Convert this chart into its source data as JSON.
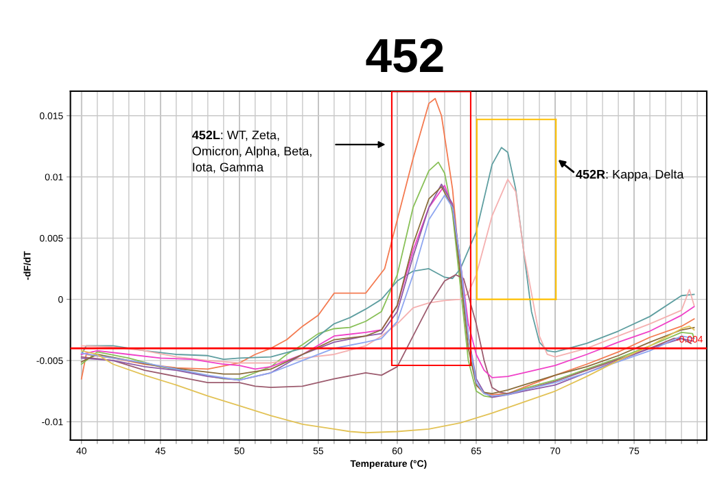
{
  "chart_data": {
    "type": "line",
    "title": "452",
    "xlabel": "Temperature (°C)",
    "ylabel": "-dF/dT",
    "xlim": [
      39.3,
      79.6
    ],
    "ylim": [
      -0.0115,
      0.017
    ],
    "xticks": [
      40,
      {
        "value": 41,
        "label": null
      },
      {
        "value": 42,
        "label": null
      },
      {
        "value": 43,
        "label": null
      },
      {
        "value": 44,
        "label": null
      },
      45,
      {
        "value": 46,
        "label": null
      },
      {
        "value": 47,
        "label": null
      },
      {
        "value": 48,
        "label": null
      },
      {
        "value": 49,
        "label": null
      },
      50,
      {
        "value": 51,
        "label": null
      },
      {
        "value": 52,
        "label": null
      },
      {
        "value": 53,
        "label": null
      },
      {
        "value": 54,
        "label": null
      },
      55,
      {
        "value": 56,
        "label": null
      },
      {
        "value": 57,
        "label": null
      },
      {
        "value": 58,
        "label": null
      },
      {
        "value": 59,
        "label": null
      },
      60,
      {
        "value": 61,
        "label": null
      },
      {
        "value": 62,
        "label": null
      },
      {
        "value": 63,
        "label": null
      },
      {
        "value": 64,
        "label": null
      },
      65,
      {
        "value": 66,
        "label": null
      },
      {
        "value": 67,
        "label": null
      },
      {
        "value": 68,
        "label": null
      },
      {
        "value": 69,
        "label": null
      },
      70,
      {
        "value": 71,
        "label": null
      },
      {
        "value": 72,
        "label": null
      },
      {
        "value": 73,
        "label": null
      },
      {
        "value": 74,
        "label": null
      },
      75,
      {
        "value": 76,
        "label": null
      },
      {
        "value": 77,
        "label": null
      },
      {
        "value": 78,
        "label": null
      },
      {
        "value": 79,
        "label": null
      }
    ],
    "yticks": [
      {
        "value": -0.01,
        "label": "-0.01"
      },
      {
        "value": -0.005,
        "label": "-0.005"
      },
      0,
      0.005,
      0.01,
      0.015
    ],
    "grid": true,
    "marker": "none",
    "line_style": "solid",
    "ref_lines": [
      {
        "axis": "y",
        "value": -0.004,
        "label": "-0.004",
        "color": "#ff0000"
      }
    ],
    "annotations": [
      "452L: WT, Zeta,\nOmicron, Alpha, Beta,\nIota, Gamma",
      "452R: Kappa, Delta"
    ],
    "series": [
      {
        "color": "#f47a50",
        "x": [
          40,
          40.3,
          42,
          44,
          46,
          48,
          50,
          51,
          52,
          53,
          54,
          55,
          56,
          57,
          58,
          59.2,
          60,
          61,
          62,
          62.4,
          62.8,
          63.5,
          64,
          64.5,
          65,
          65.5,
          66,
          67,
          68,
          70,
          72,
          74,
          76,
          78,
          78.8
        ],
        "values": [
          -0.0065,
          -0.0045,
          -0.0048,
          -0.0053,
          -0.0056,
          -0.0057,
          -0.0052,
          -0.0045,
          -0.004,
          -0.0033,
          -0.0022,
          -0.0013,
          0.0005,
          0.0005,
          0.0005,
          0.0025,
          0.0065,
          0.0115,
          0.016,
          0.0164,
          0.015,
          0.009,
          0.002,
          -0.003,
          -0.007,
          -0.0077,
          -0.0078,
          -0.0077,
          -0.0072,
          -0.0062,
          -0.0053,
          -0.0043,
          -0.0031,
          -0.0022,
          -0.0016
        ]
      },
      {
        "color": "#88c057",
        "x": [
          40,
          41,
          43,
          45,
          47,
          49,
          50,
          51,
          52,
          53,
          54,
          55,
          56,
          57,
          58,
          59,
          60,
          61,
          62,
          62.6,
          63,
          63.5,
          64,
          64.5,
          65,
          65.5,
          66,
          67,
          68,
          70,
          72,
          74,
          76,
          78,
          78.7,
          78.8
        ],
        "values": [
          -0.0053,
          -0.0043,
          -0.0048,
          -0.0055,
          -0.006,
          -0.0065,
          -0.0065,
          -0.006,
          -0.0055,
          -0.0045,
          -0.0037,
          -0.0028,
          -0.0024,
          -0.0023,
          -0.0018,
          -0.001,
          0.002,
          0.0075,
          0.0105,
          0.0112,
          0.0103,
          0.007,
          0.001,
          -0.005,
          -0.0075,
          -0.0079,
          -0.008,
          -0.0077,
          -0.0073,
          -0.0066,
          -0.0057,
          -0.0048,
          -0.0038,
          -0.0027,
          -0.0028,
          -0.0032
        ]
      },
      {
        "color": "#5e9ea0",
        "x": [
          40,
          40.3,
          42,
          44,
          46,
          48,
          49,
          50,
          52,
          54,
          55,
          56,
          57,
          58,
          59,
          60,
          61,
          62,
          63,
          63.5,
          64,
          65,
          66,
          66.6,
          67,
          67.5,
          68,
          68.5,
          69,
          69.5,
          70,
          72,
          74,
          76,
          78,
          78.8
        ],
        "values": [
          -0.0045,
          -0.0038,
          -0.0038,
          -0.0042,
          -0.0045,
          -0.0046,
          -0.0049,
          -0.0048,
          -0.0047,
          -0.004,
          -0.003,
          -0.002,
          -0.0015,
          -0.0008,
          0.0,
          0.0015,
          0.0023,
          0.0025,
          0.0018,
          0.0017,
          0.0025,
          0.0055,
          0.011,
          0.0124,
          0.012,
          0.009,
          0.004,
          -0.001,
          -0.0035,
          -0.0042,
          -0.0043,
          -0.0036,
          -0.0026,
          -0.0014,
          0.0003,
          0.0004
        ]
      },
      {
        "color": "#f5b0b0",
        "x": [
          40,
          42,
          44,
          46,
          48,
          50,
          52,
          54,
          56,
          58,
          59,
          60,
          61,
          62,
          63,
          64,
          64.5,
          65,
          66,
          67,
          67.5,
          68,
          69,
          69.5,
          70,
          72,
          74,
          76,
          78,
          78.5,
          78.8
        ],
        "values": [
          -0.0038,
          -0.0039,
          -0.0042,
          -0.0047,
          -0.005,
          -0.0052,
          -0.0052,
          -0.0048,
          -0.0045,
          -0.0038,
          -0.003,
          -0.002,
          -0.0007,
          -0.0003,
          -0.0001,
          0.0,
          0.0005,
          0.002,
          0.0068,
          0.0098,
          0.0088,
          0.004,
          -0.003,
          -0.0045,
          -0.0047,
          -0.004,
          -0.003,
          -0.002,
          -0.0009,
          0.0008,
          -0.0005
        ]
      },
      {
        "color": "#9c5b6e",
        "x": [
          40,
          42,
          44,
          46,
          48,
          50,
          51,
          52,
          54,
          56,
          58,
          59,
          60,
          61,
          62,
          63,
          63.7,
          64.2,
          65,
          65.5,
          66,
          66.5,
          67,
          68,
          70,
          72,
          74,
          76,
          77.5,
          78,
          78.6
        ],
        "values": [
          -0.0047,
          -0.005,
          -0.0058,
          -0.0063,
          -0.0068,
          -0.0068,
          -0.0071,
          -0.0072,
          -0.0071,
          -0.0065,
          -0.006,
          -0.0062,
          -0.0055,
          -0.003,
          -0.0005,
          0.0015,
          0.002,
          0.0017,
          -0.002,
          -0.005,
          -0.0072,
          -0.0076,
          -0.0077,
          -0.0074,
          -0.0067,
          -0.0058,
          -0.0049,
          -0.004,
          -0.0032,
          -0.0032,
          -0.0036
        ]
      },
      {
        "color": "#f040c8",
        "x": [
          40,
          41,
          43,
          45,
          47,
          49,
          50,
          51,
          52,
          54,
          56,
          58,
          59,
          60,
          61,
          62,
          63,
          63.5,
          64,
          64.5,
          65,
          65.5,
          66,
          67,
          68,
          70,
          72,
          74,
          76,
          78,
          78.8
        ],
        "values": [
          -0.0045,
          -0.0042,
          -0.0045,
          -0.0048,
          -0.0049,
          -0.0053,
          -0.0054,
          -0.0057,
          -0.0055,
          -0.0045,
          -0.003,
          -0.0027,
          -0.0025,
          -0.0005,
          0.004,
          0.0075,
          0.0093,
          0.0075,
          0.003,
          -0.002,
          -0.0045,
          -0.0058,
          -0.0064,
          -0.0063,
          -0.006,
          -0.0054,
          -0.0045,
          -0.0035,
          -0.0026,
          -0.0013,
          -0.0006
        ]
      },
      {
        "color": "#8e5ba8",
        "x": [
          40,
          42,
          44,
          46,
          48,
          50,
          52,
          54,
          56,
          58,
          59,
          60,
          61,
          62,
          62.8,
          63.5,
          64,
          64.5,
          65,
          65.5,
          66,
          67,
          68,
          70,
          72,
          74,
          76,
          78,
          78.7
        ],
        "values": [
          -0.0048,
          -0.005,
          -0.0055,
          -0.0058,
          -0.0063,
          -0.0066,
          -0.006,
          -0.0045,
          -0.0035,
          -0.003,
          -0.0028,
          -0.001,
          0.0035,
          0.0075,
          0.0094,
          0.0078,
          0.003,
          -0.003,
          -0.0065,
          -0.0076,
          -0.008,
          -0.0078,
          -0.0075,
          -0.007,
          -0.006,
          -0.005,
          -0.004,
          -0.0032,
          -0.0034
        ]
      },
      {
        "color": "#8a6d3b",
        "x": [
          40,
          41,
          43,
          45,
          47,
          49,
          50,
          52,
          54,
          56,
          58,
          59,
          60,
          61,
          62,
          62.8,
          63.5,
          64,
          64.5,
          65,
          65.5,
          66,
          67,
          68,
          70,
          72,
          74,
          76,
          78,
          78.8
        ],
        "values": [
          -0.0051,
          -0.0045,
          -0.005,
          -0.0055,
          -0.0058,
          -0.0061,
          -0.0061,
          -0.0057,
          -0.0045,
          -0.0033,
          -0.003,
          -0.0025,
          -0.0005,
          0.0045,
          0.0082,
          0.0092,
          0.0075,
          0.002,
          -0.004,
          -0.007,
          -0.0076,
          -0.0077,
          -0.0074,
          -0.007,
          -0.0062,
          -0.0055,
          -0.0046,
          -0.0035,
          -0.0025,
          -0.0023
        ]
      },
      {
        "color": "#8ea6f0",
        "x": [
          40,
          42,
          44,
          46,
          48,
          50,
          52,
          54,
          56,
          58,
          59,
          60,
          61,
          62,
          63,
          63.5,
          64,
          64.5,
          65,
          65.5,
          66,
          67,
          68,
          70,
          72,
          74,
          76,
          78,
          78.8
        ],
        "values": [
          -0.0044,
          -0.0048,
          -0.0052,
          -0.0057,
          -0.0062,
          -0.0066,
          -0.006,
          -0.005,
          -0.004,
          -0.0035,
          -0.0032,
          -0.0018,
          0.002,
          0.0065,
          0.0085,
          0.0075,
          0.003,
          -0.003,
          -0.0068,
          -0.0077,
          -0.0079,
          -0.0078,
          -0.0074,
          -0.0068,
          -0.006,
          -0.0051,
          -0.0042,
          -0.003,
          -0.0032
        ]
      },
      {
        "color": "#e2c255",
        "x": [
          40,
          41,
          42,
          44,
          46,
          48,
          50,
          52,
          54,
          56,
          57,
          58,
          60,
          62,
          64,
          66,
          68,
          70,
          72,
          74,
          76,
          78,
          78.5,
          78.8
        ],
        "values": [
          -0.0042,
          -0.0045,
          -0.0053,
          -0.0062,
          -0.007,
          -0.0079,
          -0.0087,
          -0.0095,
          -0.0102,
          -0.0106,
          -0.0108,
          -0.0109,
          -0.0108,
          -0.0106,
          -0.0101,
          -0.0093,
          -0.0084,
          -0.0075,
          -0.0063,
          -0.005,
          -0.0038,
          -0.0024,
          -0.0022,
          -0.0025
        ]
      }
    ]
  }
}
